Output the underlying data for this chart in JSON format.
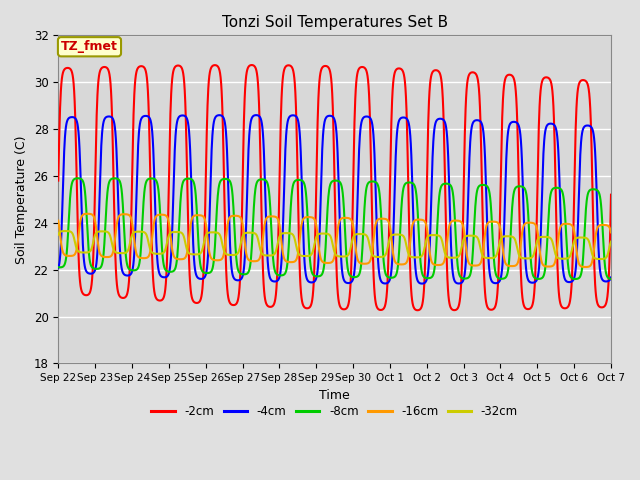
{
  "title": "Tonzi Soil Temperatures Set B",
  "xlabel": "Time",
  "ylabel": "Soil Temperature (C)",
  "ylim": [
    18,
    32
  ],
  "yticks": [
    18,
    20,
    22,
    24,
    26,
    28,
    30,
    32
  ],
  "annotation_text": "TZ_fmet",
  "annotation_color": "#cc0000",
  "annotation_bg": "#ffffcc",
  "annotation_border": "#999900",
  "series": {
    "-2cm": {
      "color": "#ff0000",
      "amplitude": 4.8,
      "mean": 25.5,
      "phase_shift": 0.0,
      "lw": 1.5
    },
    "-4cm": {
      "color": "#0000ff",
      "amplitude": 3.3,
      "mean": 25.0,
      "phase_shift": 0.12,
      "lw": 1.5
    },
    "-8cm": {
      "color": "#00cc00",
      "amplitude": 1.9,
      "mean": 23.8,
      "phase_shift": 0.28,
      "lw": 1.5
    },
    "-16cm": {
      "color": "#ff9900",
      "amplitude": 0.9,
      "mean": 23.3,
      "phase_shift": 0.55,
      "lw": 1.5
    },
    "-32cm": {
      "color": "#cccc00",
      "amplitude": 0.45,
      "mean": 23.1,
      "phase_shift": 0.95,
      "lw": 1.5
    }
  },
  "n_days": 15,
  "samples_per_day": 144,
  "bg_color": "#e0e0e0",
  "plot_bg_color": "#d8d8d8",
  "grid_color": "#ffffff",
  "figsize": [
    6.4,
    4.8
  ],
  "dpi": 100
}
